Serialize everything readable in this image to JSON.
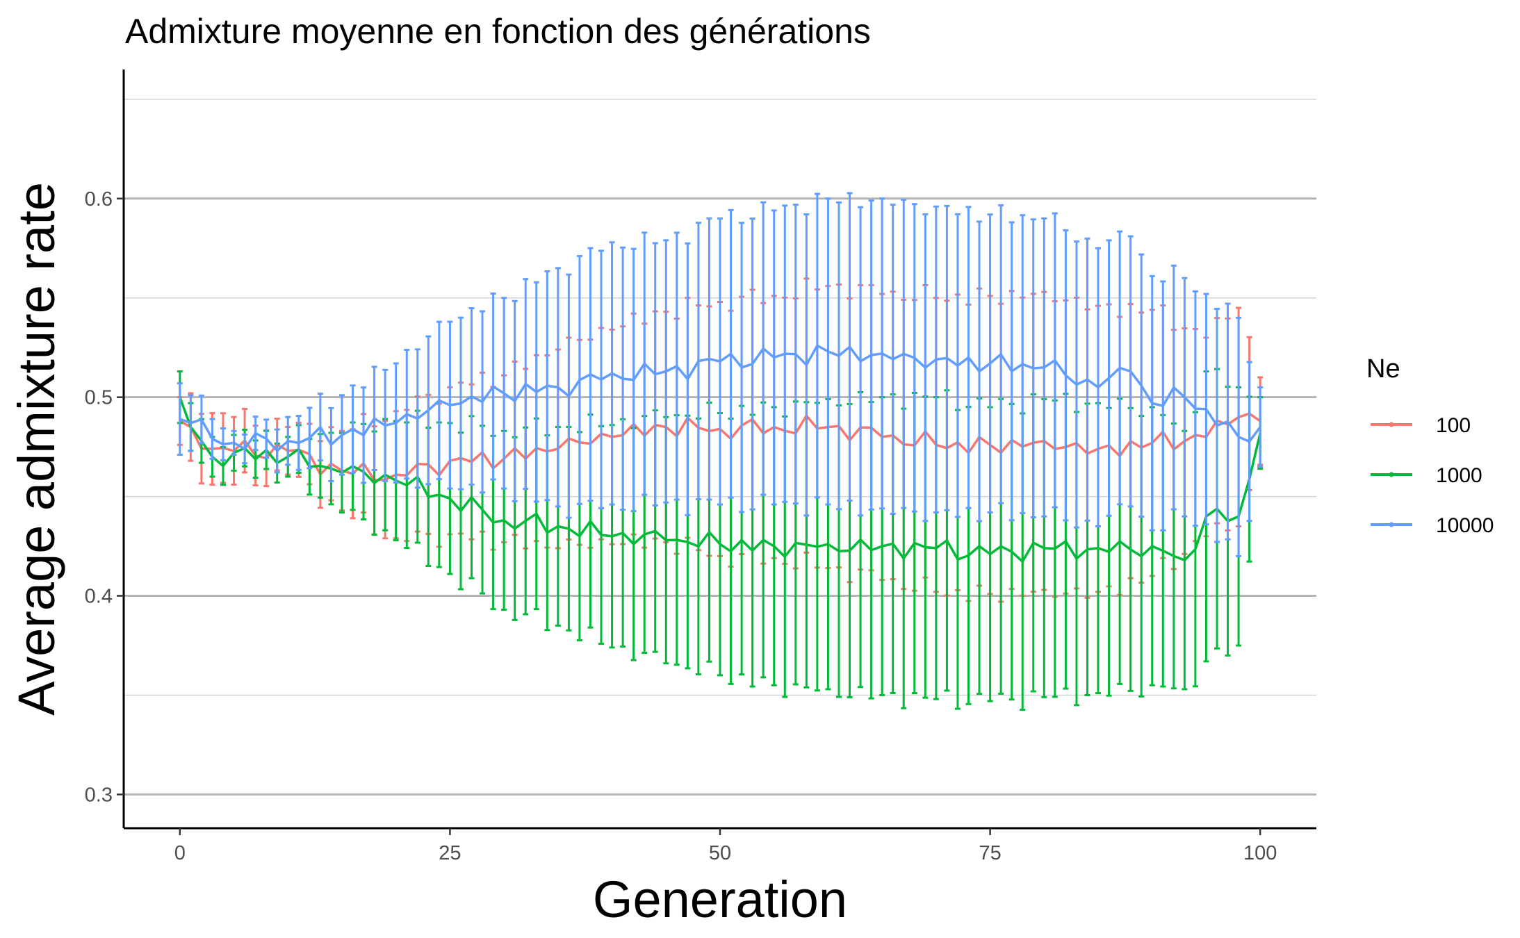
{
  "chart_data": {
    "type": "line",
    "title": "Admixture moyenne en fonction des générations",
    "xlabel": "Generation",
    "ylabel": "Average admixture rate",
    "xlim": [
      -5.2,
      105.2
    ],
    "ylim": [
      0.283,
      0.665
    ],
    "xticks": [
      0,
      25,
      50,
      75,
      100
    ],
    "xtick_labels": [
      "0",
      "25",
      "50",
      "75",
      "100"
    ],
    "yticks": [
      0.3,
      0.4,
      0.5,
      0.6
    ],
    "ytick_labels": [
      "0.3",
      "0.4",
      "0.5",
      "0.6"
    ],
    "y_minor_gridlines": [
      0.35,
      0.45,
      0.55,
      0.65
    ],
    "grid": "horizontal",
    "legend": {
      "title": "Ne",
      "position": "right",
      "entries": [
        "100",
        "1000",
        "10000"
      ]
    },
    "series": [
      {
        "name": "100",
        "color": "#F8766D",
        "error_bars": "mean ± sd",
        "keypoints": [
          [
            0,
            0.488,
            0.012
          ],
          [
            1,
            0.485,
            0.017
          ],
          [
            3,
            0.474,
            0.018
          ],
          [
            5,
            0.473,
            0.017
          ],
          [
            10,
            0.473,
            0.012
          ],
          [
            15,
            0.463,
            0.02
          ],
          [
            20,
            0.461,
            0.032
          ],
          [
            25,
            0.468,
            0.037
          ],
          [
            30,
            0.469,
            0.042
          ],
          [
            35,
            0.474,
            0.05
          ],
          [
            40,
            0.48,
            0.054
          ],
          [
            45,
            0.485,
            0.058
          ],
          [
            50,
            0.484,
            0.064
          ],
          [
            55,
            0.485,
            0.066
          ],
          [
            60,
            0.485,
            0.071
          ],
          [
            65,
            0.48,
            0.072
          ],
          [
            70,
            0.476,
            0.074
          ],
          [
            75,
            0.476,
            0.075
          ],
          [
            80,
            0.478,
            0.075
          ],
          [
            85,
            0.474,
            0.072
          ],
          [
            90,
            0.477,
            0.067
          ],
          [
            95,
            0.48,
            0.05
          ],
          [
            98,
            0.49,
            0.055
          ],
          [
            100,
            0.488,
            0.022
          ]
        ]
      },
      {
        "name": "1000",
        "color": "#00BA38",
        "error_bars": "mean ± sd",
        "keypoints": [
          [
            0,
            0.5,
            0.013
          ],
          [
            1,
            0.485,
            0.012
          ],
          [
            3,
            0.47,
            0.01
          ],
          [
            5,
            0.472,
            0.009
          ],
          [
            10,
            0.47,
            0.01
          ],
          [
            15,
            0.462,
            0.02
          ],
          [
            20,
            0.458,
            0.03
          ],
          [
            25,
            0.449,
            0.038
          ],
          [
            30,
            0.438,
            0.045
          ],
          [
            35,
            0.435,
            0.05
          ],
          [
            40,
            0.43,
            0.056
          ],
          [
            45,
            0.428,
            0.062
          ],
          [
            50,
            0.426,
            0.066
          ],
          [
            55,
            0.425,
            0.07
          ],
          [
            60,
            0.426,
            0.073
          ],
          [
            65,
            0.425,
            0.075
          ],
          [
            70,
            0.424,
            0.076
          ],
          [
            75,
            0.421,
            0.074
          ],
          [
            80,
            0.424,
            0.075
          ],
          [
            85,
            0.424,
            0.073
          ],
          [
            90,
            0.425,
            0.07
          ],
          [
            93,
            0.418,
            0.065
          ],
          [
            95,
            0.44,
            0.073
          ],
          [
            98,
            0.44,
            0.065
          ],
          [
            100,
            0.482,
            0.018
          ]
        ]
      },
      {
        "name": "10000",
        "color": "#619CFF",
        "error_bars": "mean ± sd",
        "keypoints": [
          [
            0,
            0.489,
            0.018
          ],
          [
            1,
            0.487,
            0.014
          ],
          [
            3,
            0.479,
            0.01
          ],
          [
            5,
            0.477,
            0.006
          ],
          [
            10,
            0.478,
            0.012
          ],
          [
            15,
            0.481,
            0.02
          ],
          [
            20,
            0.487,
            0.03
          ],
          [
            25,
            0.496,
            0.042
          ],
          [
            30,
            0.502,
            0.048
          ],
          [
            35,
            0.505,
            0.06
          ],
          [
            40,
            0.512,
            0.066
          ],
          [
            45,
            0.513,
            0.066
          ],
          [
            50,
            0.518,
            0.072
          ],
          [
            55,
            0.52,
            0.074
          ],
          [
            60,
            0.523,
            0.077
          ],
          [
            65,
            0.522,
            0.078
          ],
          [
            70,
            0.519,
            0.077
          ],
          [
            75,
            0.517,
            0.075
          ],
          [
            80,
            0.515,
            0.075
          ],
          [
            85,
            0.505,
            0.07
          ],
          [
            88,
            0.513,
            0.068
          ],
          [
            90,
            0.497,
            0.064
          ],
          [
            93,
            0.5,
            0.06
          ],
          [
            95,
            0.494,
            0.058
          ],
          [
            98,
            0.48,
            0.06
          ],
          [
            100,
            0.485,
            0.02
          ]
        ]
      }
    ]
  }
}
